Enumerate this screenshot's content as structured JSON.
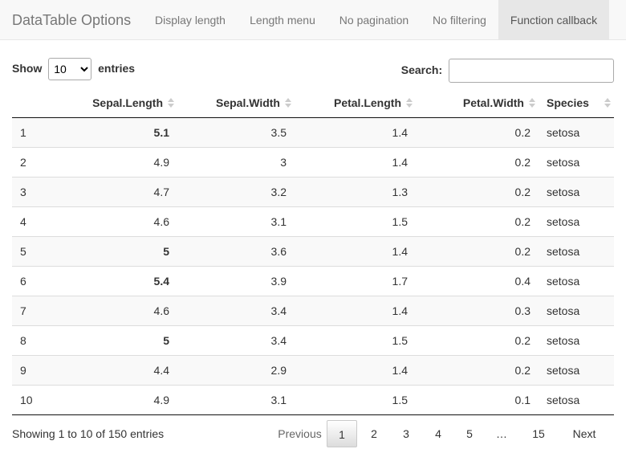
{
  "navbar": {
    "brand": "DataTable Options",
    "items": [
      {
        "label": "Display length"
      },
      {
        "label": "Length menu"
      },
      {
        "label": "No pagination"
      },
      {
        "label": "No filtering"
      },
      {
        "label": "Function callback",
        "active": true
      }
    ]
  },
  "controls": {
    "show_label": "Show",
    "length_value": "10",
    "entries_label": "entries",
    "search_label": "Search:",
    "search_value": ""
  },
  "table": {
    "columns": [
      "",
      "Sepal.Length",
      "Sepal.Width",
      "Petal.Length",
      "Petal.Width",
      "Species"
    ],
    "rows": [
      {
        "id": "1",
        "sl": "5.1",
        "sw": "3.5",
        "pl": "1.4",
        "pw": "0.2",
        "species": "setosa",
        "highlight": true
      },
      {
        "id": "2",
        "sl": "4.9",
        "sw": "3",
        "pl": "1.4",
        "pw": "0.2",
        "species": "setosa",
        "highlight": false
      },
      {
        "id": "3",
        "sl": "4.7",
        "sw": "3.2",
        "pl": "1.3",
        "pw": "0.2",
        "species": "setosa",
        "highlight": false
      },
      {
        "id": "4",
        "sl": "4.6",
        "sw": "3.1",
        "pl": "1.5",
        "pw": "0.2",
        "species": "setosa",
        "highlight": false
      },
      {
        "id": "5",
        "sl": "5",
        "sw": "3.6",
        "pl": "1.4",
        "pw": "0.2",
        "species": "setosa",
        "highlight": true
      },
      {
        "id": "6",
        "sl": "5.4",
        "sw": "3.9",
        "pl": "1.7",
        "pw": "0.4",
        "species": "setosa",
        "highlight": true
      },
      {
        "id": "7",
        "sl": "4.6",
        "sw": "3.4",
        "pl": "1.4",
        "pw": "0.3",
        "species": "setosa",
        "highlight": false
      },
      {
        "id": "8",
        "sl": "5",
        "sw": "3.4",
        "pl": "1.5",
        "pw": "0.2",
        "species": "setosa",
        "highlight": true
      },
      {
        "id": "9",
        "sl": "4.4",
        "sw": "2.9",
        "pl": "1.4",
        "pw": "0.2",
        "species": "setosa",
        "highlight": false
      },
      {
        "id": "10",
        "sl": "4.9",
        "sw": "3.1",
        "pl": "1.5",
        "pw": "0.1",
        "species": "setosa",
        "highlight": false
      }
    ]
  },
  "footer": {
    "info": "Showing 1 to 10 of 150 entries",
    "previous": "Previous",
    "pages": [
      "1",
      "2",
      "3",
      "4",
      "5",
      "…",
      "15"
    ],
    "current_page": "1",
    "next": "Next"
  }
}
